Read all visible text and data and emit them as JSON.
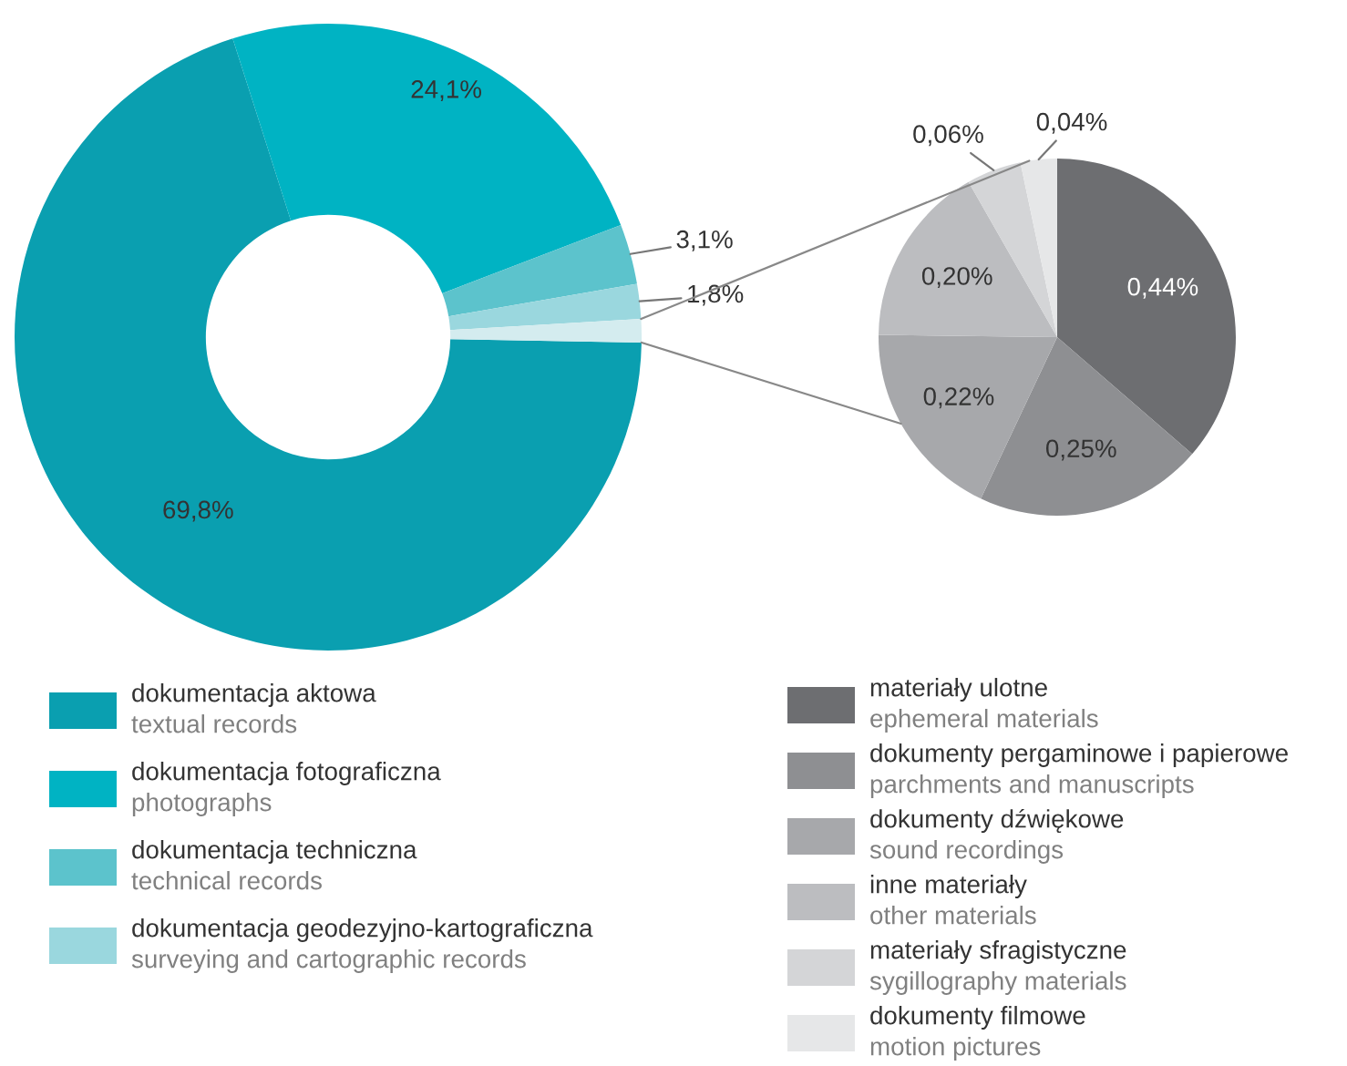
{
  "chart_data": [
    {
      "type": "donut",
      "categories": [
        "dokumentacja aktowa\ntextual records",
        "dokumentacja fotograficzna\nphotographs",
        "dokumentacja techniczna\ntechnical records",
        "dokumentacja geodezyjno-kartograficzna\nsurveying and cartographic records",
        null
      ],
      "values": [
        69.8,
        24.1,
        3.1,
        1.8,
        1.2
      ],
      "colors": [
        "#0a9fb0",
        "#00b3c3",
        "#5cc3cc",
        "#9ad7de",
        "#d4ecef"
      ],
      "value_labels": [
        "69,8%",
        "24,1%",
        "3,1%",
        "1,8%",
        null
      ],
      "legend": "bottom"
    },
    {
      "type": "pie",
      "categories": [
        "materiały ulotne\nephemeral materials",
        "dokumenty pergaminowe i papierowe\nparchments and manuscripts",
        "dokumenty dźwiękowe\nsound recordings",
        "inne materiały\nother materials",
        "materiały sfragistyczne\nsygillography materials",
        "dokumenty filmowe\nmotion pictures"
      ],
      "values": [
        0.44,
        0.25,
        0.22,
        0.2,
        0.06,
        0.04
      ],
      "colors": [
        "#6d6e71",
        "#8e8f92",
        "#a7a8ab",
        "#bcbdc0",
        "#d4d5d7",
        "#e6e7e8"
      ],
      "value_labels": [
        "0,44%",
        "0,25%",
        "0,22%",
        "0,20%",
        "0,06%",
        "0,04%"
      ],
      "legend": "bottom"
    }
  ]
}
